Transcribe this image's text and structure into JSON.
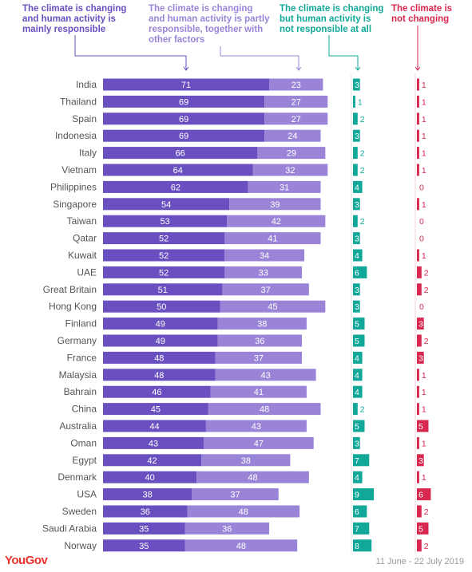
{
  "legend": [
    {
      "text": "The climate is changing\nand human activity is\nmainly responsible",
      "color": "#6a4fc0"
    },
    {
      "text": "The climate is changing\nand human activity is partly\nresponsible, together with\nother factors",
      "color": "#9a84d8"
    },
    {
      "text": "The climate is changing\nbut human activity is\nnot responsible at all",
      "color": "#11a89a"
    },
    {
      "text": "The climate is\nnot changing",
      "color": "#d8284f"
    }
  ],
  "colors": {
    "mainly": "#6a4fc0",
    "partly": "#9a84d8",
    "not_responsible": "#11a89a",
    "not_changing": "#d8284f",
    "label": "#555555"
  },
  "chart_data": {
    "type": "bar",
    "orientation": "horizontal",
    "stacked": true,
    "categories": [
      "India",
      "Thailand",
      "Spain",
      "Indonesia",
      "Italy",
      "Vietnam",
      "Philippines",
      "Singapore",
      "Taiwan",
      "Qatar",
      "Kuwait",
      "UAE",
      "Great Britain",
      "Hong Kong",
      "Finland",
      "Germany",
      "France",
      "Malaysia",
      "Bahrain",
      "China",
      "Australia",
      "Oman",
      "Egypt",
      "Denmark",
      "USA",
      "Sweden",
      "Saudi Arabia",
      "Norway"
    ],
    "series": [
      {
        "name": "The climate is changing and human activity is mainly responsible",
        "values": [
          71,
          69,
          69,
          69,
          66,
          64,
          62,
          54,
          53,
          52,
          52,
          52,
          51,
          50,
          49,
          49,
          48,
          48,
          46,
          45,
          44,
          43,
          42,
          40,
          38,
          36,
          35,
          35
        ]
      },
      {
        "name": "The climate is changing and human activity is partly responsible, together with other factors",
        "values": [
          23,
          27,
          27,
          24,
          29,
          32,
          31,
          39,
          42,
          41,
          34,
          33,
          37,
          45,
          38,
          36,
          37,
          43,
          41,
          48,
          43,
          47,
          38,
          48,
          37,
          48,
          36,
          48
        ]
      },
      {
        "name": "The climate is changing but human activity is not responsible at all",
        "values": [
          3,
          1,
          2,
          3,
          2,
          2,
          4,
          3,
          2,
          3,
          4,
          6,
          3,
          3,
          5,
          5,
          4,
          4,
          4,
          2,
          5,
          3,
          7,
          4,
          9,
          6,
          7,
          8
        ]
      },
      {
        "name": "The climate is not changing",
        "values": [
          1,
          1,
          1,
          1,
          1,
          1,
          0,
          1,
          0,
          0,
          1,
          2,
          2,
          0,
          3,
          2,
          3,
          1,
          1,
          1,
          5,
          1,
          3,
          1,
          6,
          2,
          5,
          2
        ]
      }
    ]
  },
  "footer": {
    "logo": "YouGov",
    "date": "11 June - 22 July 2019"
  }
}
